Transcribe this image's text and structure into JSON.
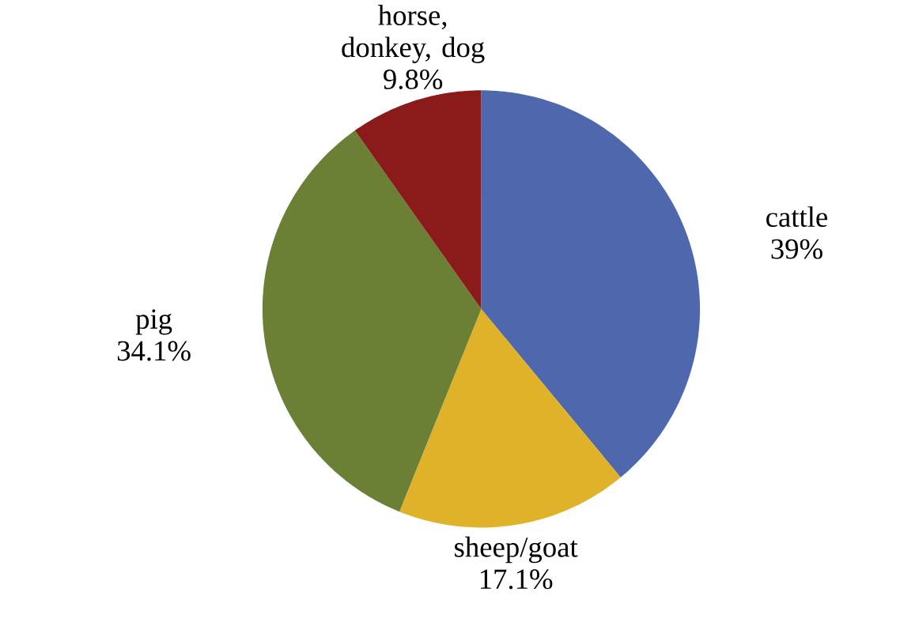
{
  "chart_data": {
    "type": "pie",
    "categories": [
      "cattle",
      "sheep/goat",
      "pig",
      "horse, donkey, dog"
    ],
    "values": [
      39,
      17.1,
      34.1,
      9.8
    ],
    "value_labels": [
      "39%",
      "17.1%",
      "34.1%",
      "9.8%"
    ],
    "colors": [
      "#4f67ad",
      "#e0b22a",
      "#6b7f35",
      "#8b1a1a"
    ],
    "legend": false
  }
}
